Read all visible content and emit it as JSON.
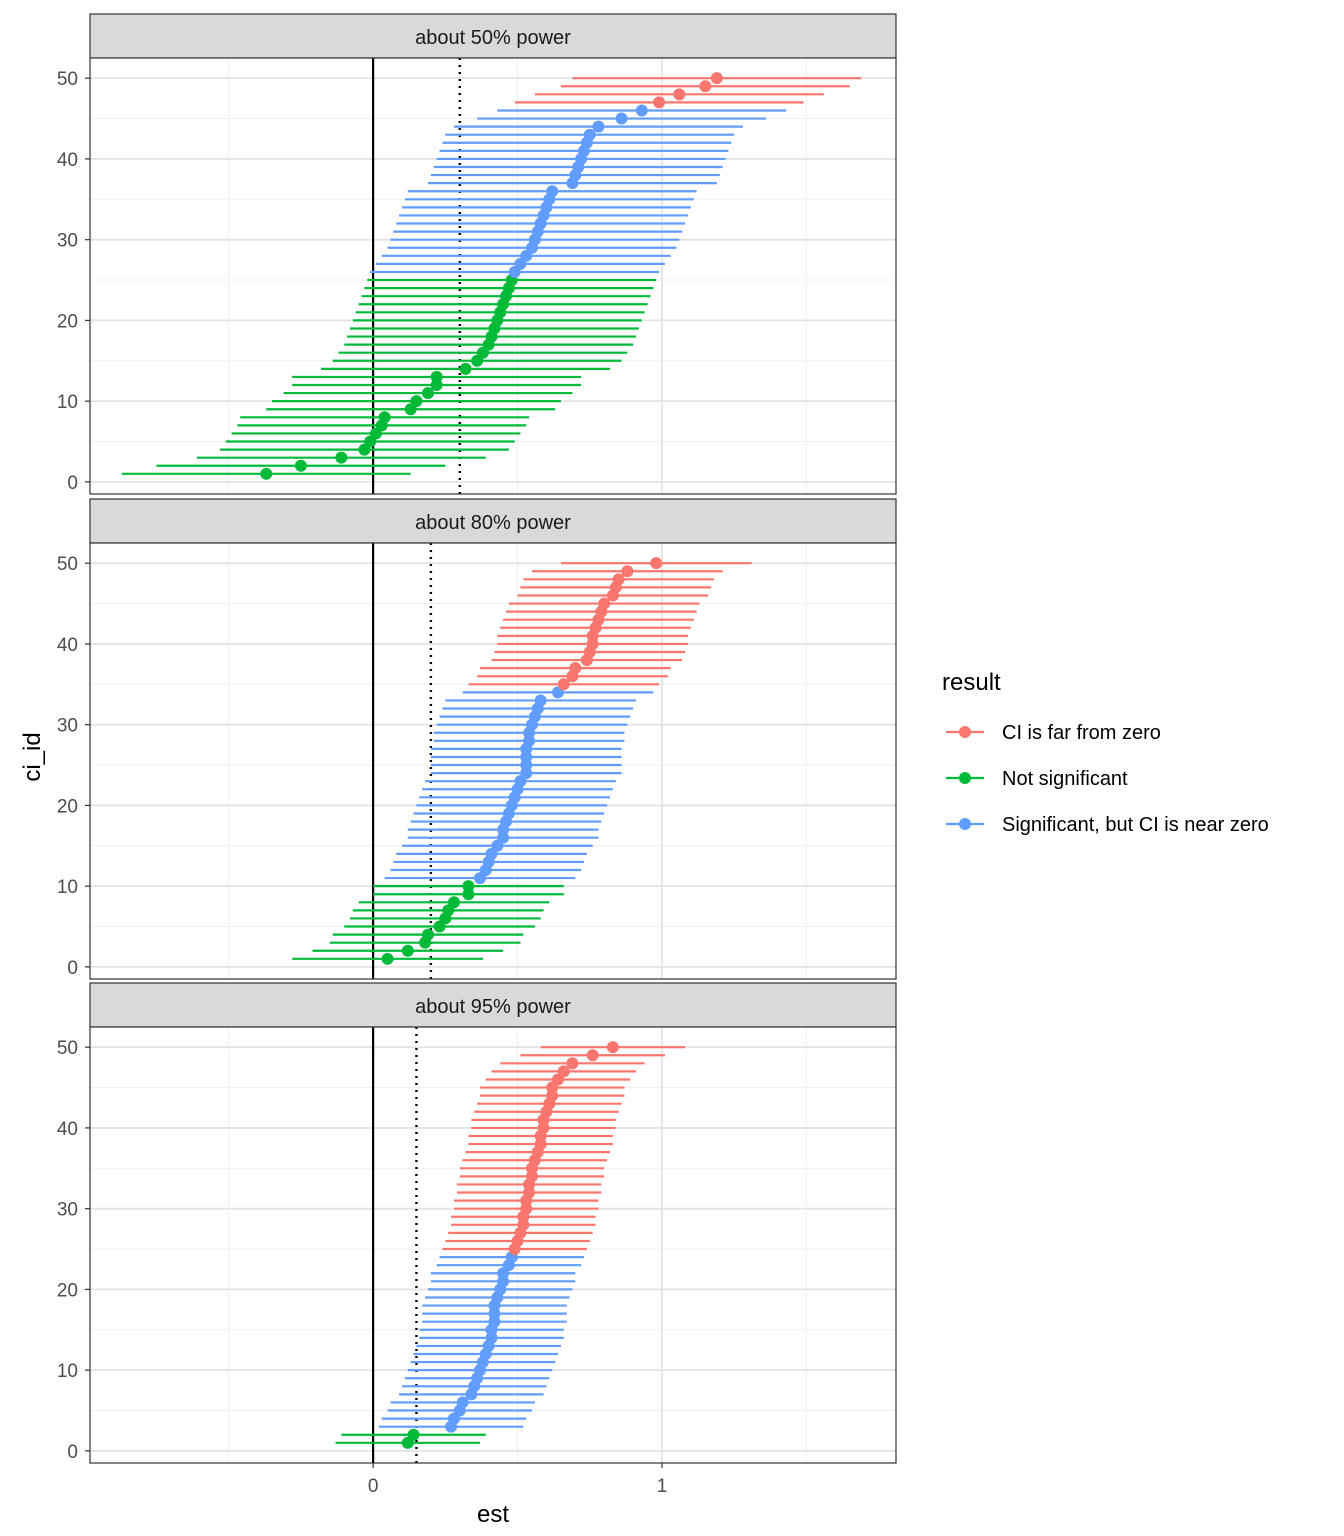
{
  "chart_data": {
    "type": "scatter",
    "xlabel": "est",
    "ylabel": "ci_id",
    "xlim": [
      -0.98,
      1.81
    ],
    "ylim": [
      -1.5,
      52.5
    ],
    "x_ticks": [
      0,
      1
    ],
    "y_ticks": [
      0,
      10,
      20,
      30,
      40,
      50
    ],
    "legend": {
      "title": "result",
      "position": "right",
      "entries": [
        {
          "label": "CI is far from zero",
          "color": "#F8766D"
        },
        {
          "label": "Not significant",
          "color": "#00BA38"
        },
        {
          "label": "Significant, but CI is near zero",
          "color": "#619CFF"
        }
      ]
    },
    "panels": [
      {
        "title": "about 50% power",
        "reference_line": 0.3,
        "groups": [
          {
            "result": "Not significant",
            "color": "#00BA38",
            "ids": [
              1,
              25
            ],
            "est": [
              -0.37,
              -0.25,
              -0.11,
              -0.03,
              -0.01,
              0.01,
              0.03,
              0.04,
              0.13,
              0.15,
              0.19,
              0.22,
              0.22,
              0.32,
              0.36,
              0.38,
              0.4,
              0.41,
              0.42,
              0.43,
              0.44,
              0.45,
              0.46,
              0.47,
              0.48
            ],
            "half_width": 0.5
          },
          {
            "result": "Significant, but CI is near zero",
            "color": "#619CFF",
            "ids": [
              26,
              46
            ],
            "est": [
              0.49,
              0.51,
              0.53,
              0.55,
              0.56,
              0.57,
              0.58,
              0.59,
              0.6,
              0.61,
              0.62,
              0.69,
              0.7,
              0.71,
              0.72,
              0.73,
              0.74,
              0.75,
              0.78,
              0.86,
              0.93
            ],
            "half_width": 0.5
          },
          {
            "result": "CI is far from zero",
            "color": "#F8766D",
            "ids": [
              47,
              50
            ],
            "est": [
              0.99,
              1.06,
              1.15,
              1.19
            ],
            "half_width": 0.5
          }
        ]
      },
      {
        "title": "about 80% power",
        "reference_line": 0.2,
        "groups": [
          {
            "result": "Not significant",
            "color": "#00BA38",
            "ids": [
              1,
              10
            ],
            "est": [
              0.05,
              0.12,
              0.18,
              0.19,
              0.23,
              0.25,
              0.26,
              0.28,
              0.33,
              0.33
            ],
            "half_width": 0.33
          },
          {
            "result": "Significant, but CI is near zero",
            "color": "#619CFF",
            "ids": [
              11,
              34
            ],
            "est": [
              0.37,
              0.39,
              0.4,
              0.41,
              0.43,
              0.45,
              0.45,
              0.46,
              0.47,
              0.48,
              0.49,
              0.5,
              0.51,
              0.53,
              0.53,
              0.53,
              0.53,
              0.54,
              0.54,
              0.55,
              0.56,
              0.57,
              0.58,
              0.64
            ],
            "half_width": 0.33
          },
          {
            "result": "CI is far from zero",
            "color": "#F8766D",
            "ids": [
              35,
              50
            ],
            "est": [
              0.66,
              0.69,
              0.7,
              0.74,
              0.75,
              0.76,
              0.76,
              0.77,
              0.78,
              0.79,
              0.8,
              0.83,
              0.84,
              0.85,
              0.88,
              0.98
            ],
            "half_width": 0.33
          }
        ]
      },
      {
        "title": "about 95% power",
        "reference_line": 0.15,
        "groups": [
          {
            "result": "Not significant",
            "color": "#00BA38",
            "ids": [
              1,
              2
            ],
            "est": [
              0.12,
              0.14
            ],
            "half_width": 0.25
          },
          {
            "result": "Significant, but CI is near zero",
            "color": "#619CFF",
            "ids": [
              3,
              24
            ],
            "est": [
              0.27,
              0.28,
              0.3,
              0.31,
              0.34,
              0.35,
              0.36,
              0.37,
              0.38,
              0.39,
              0.4,
              0.41,
              0.41,
              0.42,
              0.42,
              0.42,
              0.43,
              0.44,
              0.45,
              0.45,
              0.47,
              0.48
            ],
            "half_width": 0.25
          },
          {
            "result": "CI is far from zero",
            "color": "#F8766D",
            "ids": [
              25,
              50
            ],
            "est": [
              0.49,
              0.5,
              0.51,
              0.52,
              0.52,
              0.53,
              0.53,
              0.54,
              0.54,
              0.55,
              0.55,
              0.56,
              0.57,
              0.58,
              0.58,
              0.59,
              0.59,
              0.6,
              0.61,
              0.62,
              0.62,
              0.64,
              0.66,
              0.69,
              0.76,
              0.83
            ],
            "half_width": 0.25
          }
        ]
      }
    ]
  }
}
